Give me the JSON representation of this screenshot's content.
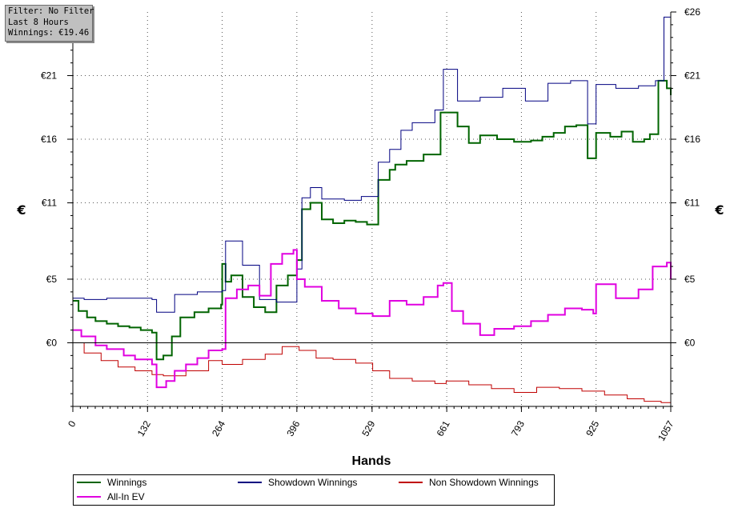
{
  "info": {
    "filter": "Filter: No Filter",
    "period": "Last  8 Hours",
    "winnings": "Winnings: €19.46"
  },
  "chart_data": {
    "type": "line",
    "title": "",
    "xlabel": "Hands",
    "ylabel_left": "€",
    "ylabel_right": "€",
    "xlim": [
      0,
      1057
    ],
    "ylim": [
      -5,
      26
    ],
    "x_ticks": [
      0,
      132,
      264,
      396,
      529,
      661,
      793,
      925,
      1057
    ],
    "x_tick_labels": [
      "0",
      "132",
      "264",
      "396",
      "529",
      "661",
      "793",
      "925",
      "1057"
    ],
    "y_ticks": [
      0,
      5,
      11,
      16,
      21,
      26
    ],
    "y_tick_labels_left": [
      "€0",
      "€5",
      "€11",
      "€16",
      "€21",
      ""
    ],
    "y_tick_labels_right": [
      "€0",
      "€5",
      "€11",
      "€16",
      "€21",
      "€26"
    ],
    "grid": true,
    "legend_position": "bottom",
    "series": [
      {
        "name": "Winnings",
        "color": "#006400",
        "x": [
          0,
          10,
          25,
          40,
          60,
          80,
          100,
          120,
          140,
          148,
          160,
          175,
          190,
          215,
          240,
          262,
          264,
          270,
          280,
          300,
          320,
          340,
          360,
          380,
          396,
          405,
          420,
          440,
          460,
          480,
          500,
          520,
          540,
          560,
          570,
          590,
          620,
          650,
          680,
          700,
          720,
          750,
          780,
          810,
          830,
          850,
          870,
          890,
          910,
          925,
          950,
          970,
          990,
          1010,
          1020,
          1035,
          1050,
          1057
        ],
        "values": [
          3.3,
          2.5,
          2.0,
          1.7,
          1.5,
          1.3,
          1.2,
          1.0,
          0.8,
          -1.3,
          -1.0,
          0.5,
          2.0,
          2.4,
          2.7,
          3.0,
          6.2,
          4.8,
          5.3,
          3.6,
          2.8,
          2.4,
          4.5,
          5.3,
          6.5,
          10.5,
          11.0,
          9.7,
          9.4,
          9.6,
          9.5,
          9.3,
          12.8,
          13.6,
          14.0,
          14.3,
          14.8,
          18.1,
          17.0,
          15.7,
          16.3,
          16.0,
          15.8,
          15.9,
          16.2,
          16.5,
          17.0,
          17.1,
          14.5,
          16.5,
          16.2,
          16.6,
          15.8,
          16.0,
          16.4,
          20.6,
          20.0,
          19.46
        ]
      },
      {
        "name": "Showdown Winnings",
        "color": "#000080",
        "x": [
          0,
          20,
          60,
          100,
          140,
          148,
          180,
          220,
          264,
          270,
          300,
          330,
          360,
          396,
          405,
          420,
          440,
          480,
          510,
          540,
          560,
          580,
          600,
          640,
          655,
          680,
          720,
          760,
          800,
          840,
          880,
          910,
          925,
          960,
          1000,
          1030,
          1045,
          1057
        ],
        "values": [
          3.5,
          3.4,
          3.5,
          3.5,
          3.4,
          2.4,
          3.8,
          4.0,
          4.1,
          8.0,
          6.1,
          3.4,
          3.2,
          5.8,
          11.4,
          12.2,
          11.3,
          11.2,
          11.5,
          14.2,
          15.2,
          16.7,
          17.3,
          18.3,
          21.5,
          19.0,
          19.3,
          20.0,
          19.0,
          20.4,
          20.6,
          17.2,
          20.3,
          20.0,
          20.2,
          20.6,
          25.6,
          24.5
        ]
      },
      {
        "name": "Non Showdown Winnings",
        "color": "#c00000",
        "x": [
          0,
          20,
          50,
          80,
          110,
          140,
          160,
          200,
          240,
          264,
          300,
          340,
          370,
          400,
          430,
          460,
          500,
          530,
          560,
          600,
          640,
          660,
          700,
          740,
          780,
          820,
          860,
          900,
          940,
          980,
          1010,
          1040,
          1057
        ],
        "values": [
          0.0,
          -0.8,
          -1.4,
          -1.9,
          -2.2,
          -2.5,
          -2.6,
          -2.2,
          -1.4,
          -1.7,
          -1.3,
          -0.9,
          -0.3,
          -0.6,
          -1.2,
          -1.3,
          -1.6,
          -2.2,
          -2.8,
          -3.0,
          -3.2,
          -3.0,
          -3.3,
          -3.6,
          -3.9,
          -3.5,
          -3.6,
          -3.8,
          -4.1,
          -4.4,
          -4.6,
          -4.7,
          -4.8
        ]
      },
      {
        "name": "All-In EV",
        "color": "#e000e0",
        "x": [
          0,
          15,
          40,
          60,
          90,
          110,
          140,
          148,
          165,
          180,
          200,
          220,
          240,
          264,
          270,
          290,
          310,
          330,
          350,
          370,
          390,
          396,
          410,
          440,
          470,
          500,
          530,
          560,
          590,
          620,
          645,
          655,
          670,
          690,
          720,
          745,
          780,
          810,
          840,
          870,
          900,
          920,
          925,
          960,
          1000,
          1025,
          1050,
          1057
        ],
        "values": [
          1.0,
          0.5,
          -0.2,
          -0.5,
          -1.0,
          -1.3,
          -1.7,
          -3.5,
          -3.0,
          -2.2,
          -1.7,
          -1.2,
          -0.6,
          -0.5,
          3.5,
          4.2,
          4.5,
          3.7,
          6.2,
          7.0,
          7.3,
          5.0,
          4.4,
          3.3,
          2.7,
          2.3,
          2.1,
          3.3,
          3.0,
          3.6,
          4.5,
          4.7,
          2.5,
          1.5,
          0.6,
          1.1,
          1.3,
          1.7,
          2.2,
          2.7,
          2.6,
          2.3,
          4.6,
          3.5,
          4.2,
          6.0,
          6.3,
          5.0
        ]
      }
    ]
  },
  "legend": {
    "items": [
      {
        "label": "Winnings",
        "color": "#006400"
      },
      {
        "label": "Showdown Winnings",
        "color": "#000080"
      },
      {
        "label": "Non Showdown Winnings",
        "color": "#c00000"
      },
      {
        "label": "All-In EV",
        "color": "#e000e0"
      }
    ]
  }
}
